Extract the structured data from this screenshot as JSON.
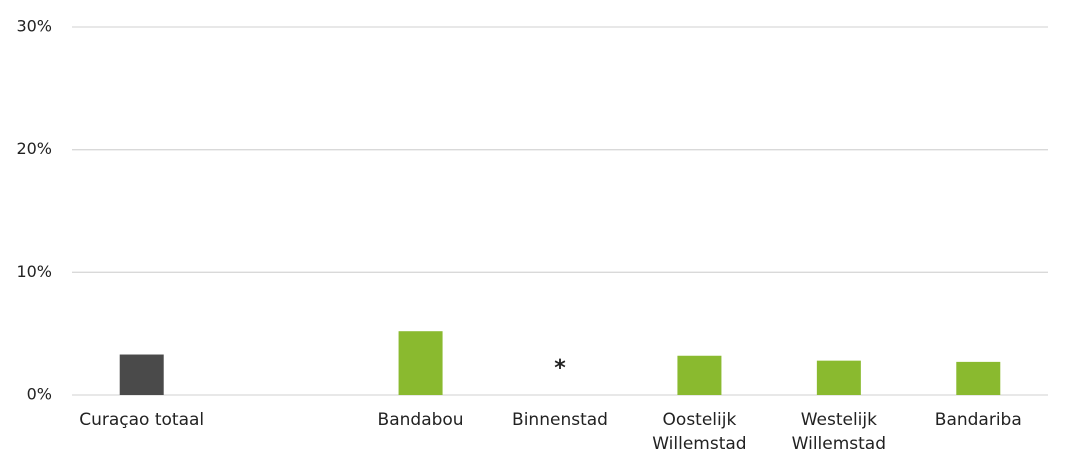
{
  "chart_data": {
    "type": "bar",
    "categories": [
      "Curaçao totaal",
      null,
      "Bandabou",
      "Binnenstad",
      "Oostelijk Willemstad",
      "Westelijk Willemstad",
      "Bandariba"
    ],
    "values": [
      3.3,
      null,
      5.2,
      null,
      3.2,
      2.8,
      2.7
    ],
    "value_labels": [
      null,
      null,
      null,
      "*",
      null,
      null,
      null
    ],
    "colors": [
      "#4a4a4a",
      null,
      "#8aba2f",
      null,
      "#8aba2f",
      "#8aba2f",
      "#8aba2f"
    ],
    "ylim": [
      0,
      30
    ],
    "yticks": [
      {
        "value": 0,
        "label": "0%"
      },
      {
        "value": 10,
        "label": "10%"
      },
      {
        "value": 20,
        "label": "20%"
      },
      {
        "value": 30,
        "label": "30%"
      }
    ],
    "grid": true
  }
}
